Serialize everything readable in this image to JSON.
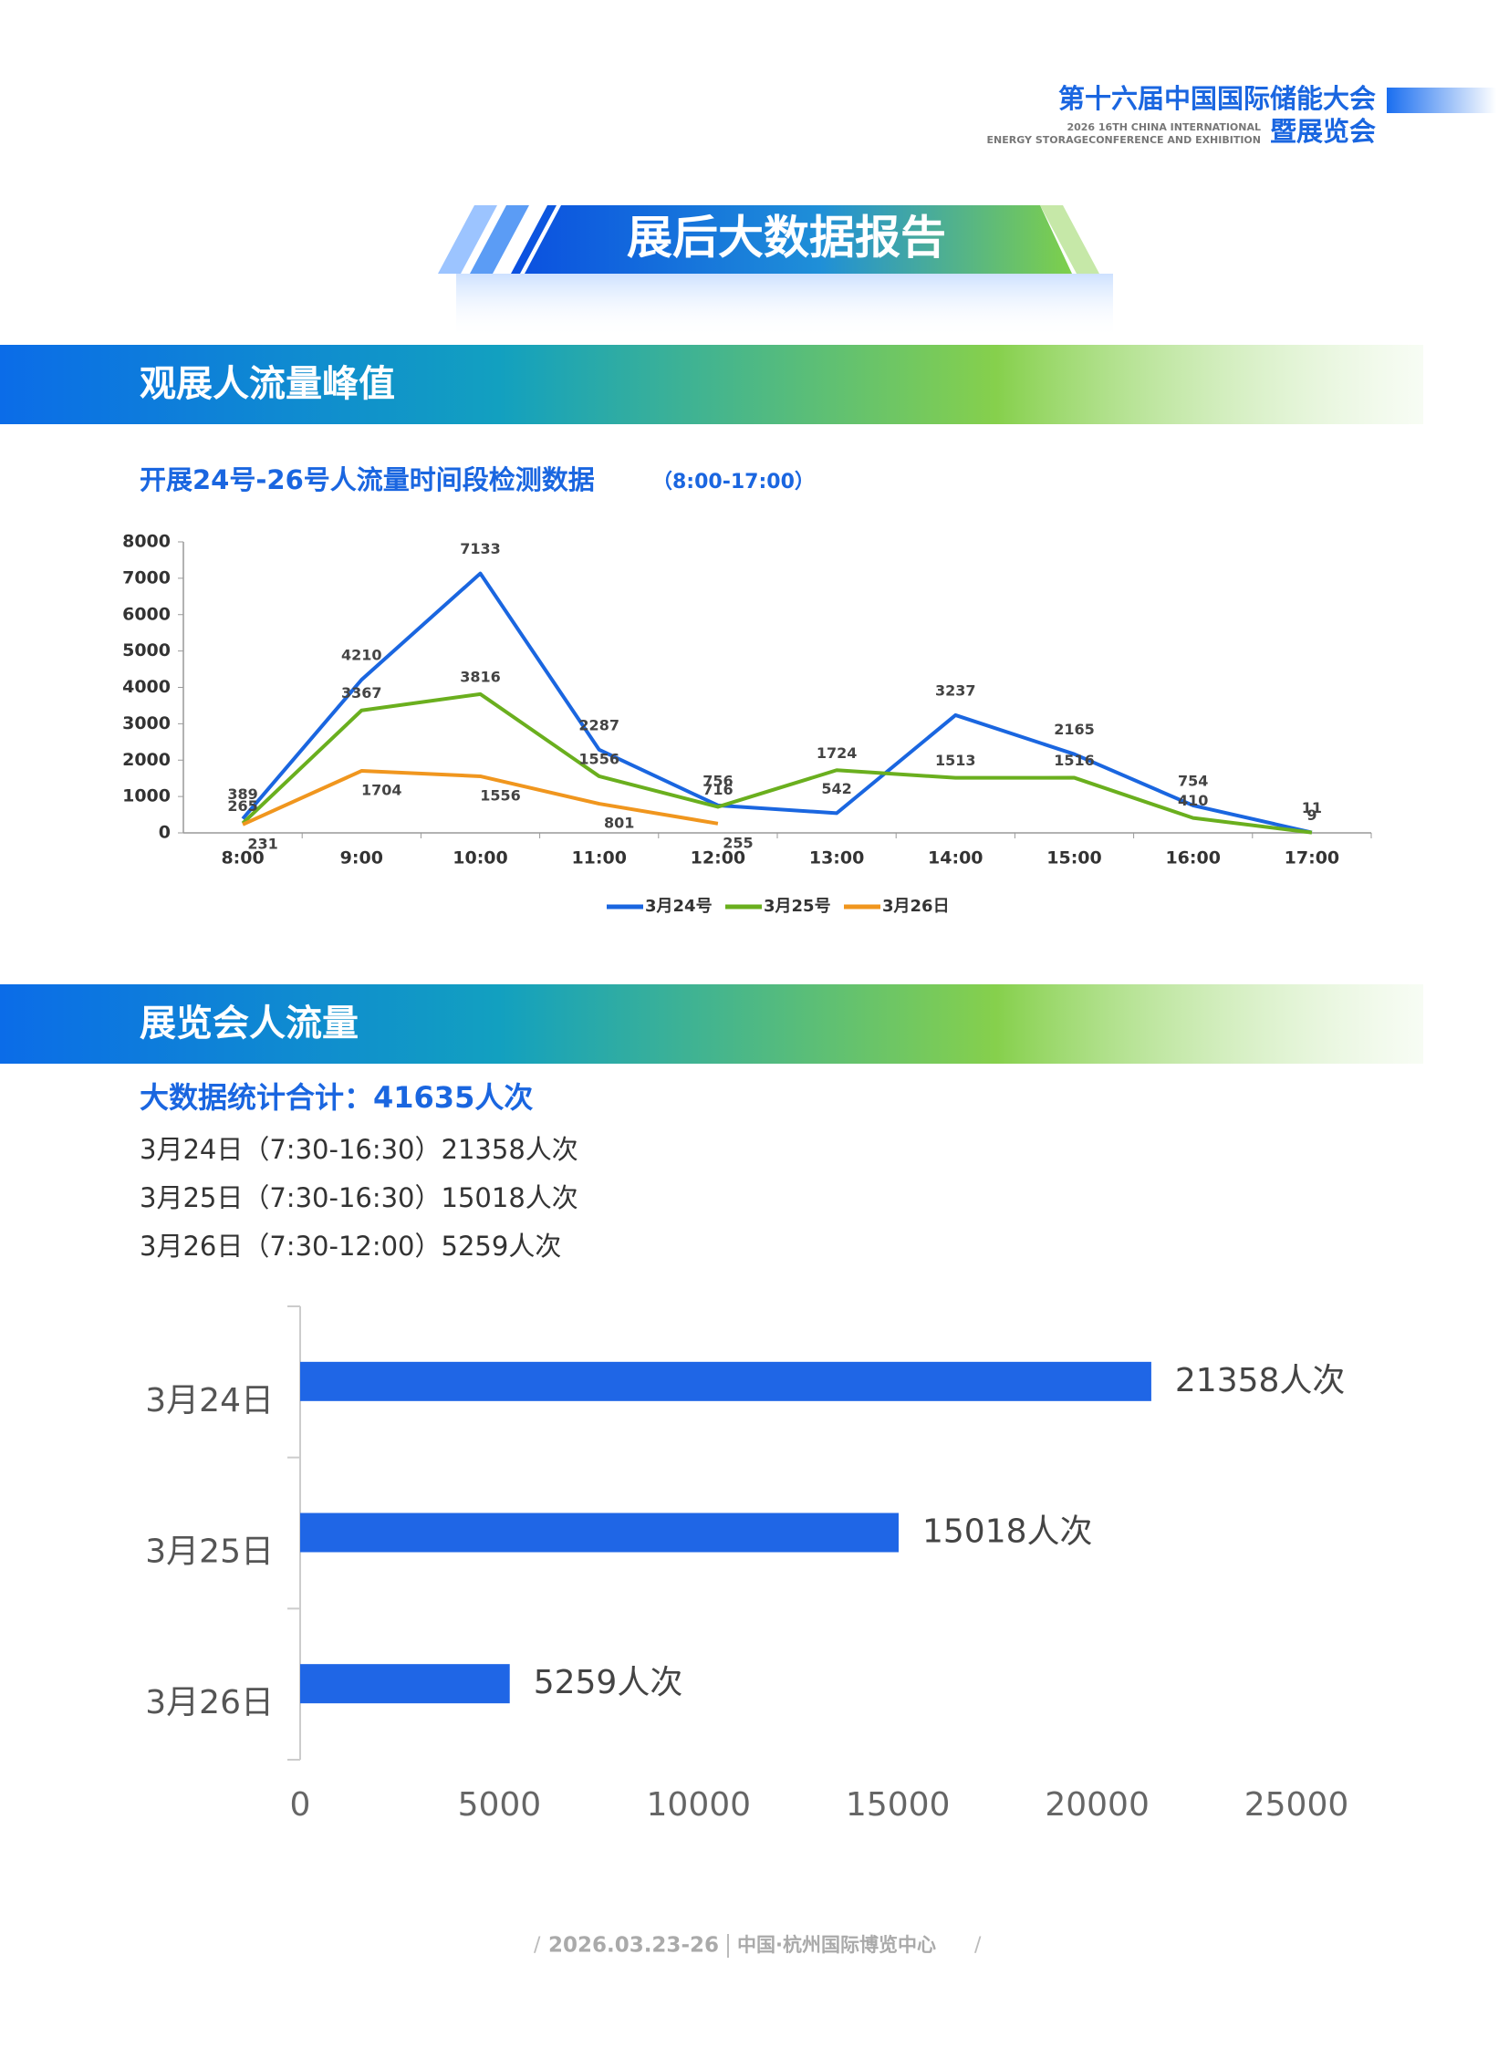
{
  "header": {
    "title_line1": "第十六届中国国际储能大会",
    "title_line2": "暨展览会",
    "en_line1": "2026 16TH CHINA INTERNATIONAL",
    "en_line2": "ENERGY STORAGECONFERENCE AND EXHIBITION"
  },
  "banner": "展后大数据报告",
  "section1": "观展人流量峰值",
  "section2": "展览会人流量",
  "summary": {
    "total": "大数据统计合计：41635人次",
    "lines": [
      "3月24日（7:30-16:30）21358人次",
      "3月25日（7:30-16:30）15018人次",
      "3月26日（7:30-12:00）5259人次"
    ]
  },
  "footer": {
    "date": "2026.03.23-26",
    "venue": "中国·杭州国际博览中心"
  },
  "chart_data": [
    {
      "type": "line",
      "title": "开展24号-26号人流量时间段检测数据",
      "subtitle": "（8:00-17:00）",
      "categories": [
        "8:00",
        "9:00",
        "10:00",
        "11:00",
        "12:00",
        "13:00",
        "14:00",
        "15:00",
        "16:00",
        "17:00"
      ],
      "series": [
        {
          "name": "3月24号",
          "color": "#1a66e0",
          "values": [
            389,
            4210,
            7133,
            2287,
            756,
            542,
            3237,
            2165,
            754,
            11
          ]
        },
        {
          "name": "3月25号",
          "color": "#6aaf1e",
          "values": [
            265,
            3367,
            3816,
            1556,
            716,
            1724,
            1513,
            1516,
            410,
            9
          ]
        },
        {
          "name": "3月26日",
          "color": "#f0961e",
          "values": [
            231,
            1704,
            1556,
            801,
            255,
            null,
            null,
            null,
            null,
            null
          ]
        }
      ],
      "ylim": [
        0,
        8000
      ],
      "yticks": [
        0,
        1000,
        2000,
        3000,
        4000,
        5000,
        6000,
        7000,
        8000
      ],
      "legend": "bottom"
    },
    {
      "type": "hbar",
      "categories": [
        "3月24日",
        "3月25日",
        "3月26日"
      ],
      "values": [
        21358,
        15018,
        5259
      ],
      "value_labels": [
        "21358人次",
        "15018人次",
        "5259人次"
      ],
      "color": "#1f66e6",
      "xlim": [
        0,
        25000
      ],
      "xticks": [
        0,
        5000,
        10000,
        15000,
        20000,
        25000
      ]
    }
  ]
}
